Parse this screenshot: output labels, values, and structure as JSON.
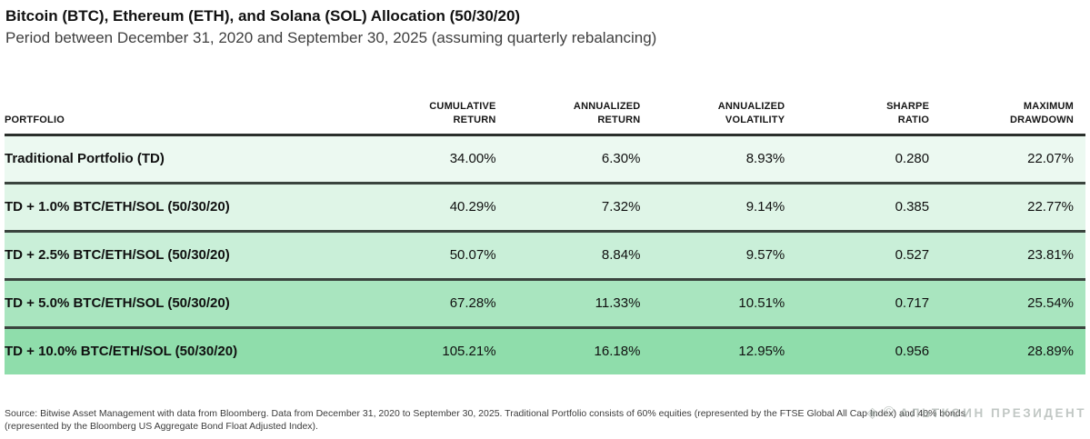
{
  "header": {
    "title": "Bitcoin (BTC), Ethereum (ETH), and Solana (SOL) Allocation (50/30/20)",
    "subtitle": "Period between December 31, 2020 and September 30, 2025 (assuming quarterly rebalancing)"
  },
  "chart_data": {
    "type": "table",
    "title": "Bitcoin (BTC), Ethereum (ETH), and Solana (SOL) Allocation (50/30/20)",
    "subtitle": "Period between December 31, 2020 and September 30, 2025 (assuming quarterly rebalancing)",
    "columns": [
      {
        "line1": "PORTFOLIO",
        "line2": ""
      },
      {
        "line1": "CUMULATIVE",
        "line2": "RETURN"
      },
      {
        "line1": "ANNUALIZED",
        "line2": "RETURN"
      },
      {
        "line1": "ANNUALIZED",
        "line2": "VOLATILITY"
      },
      {
        "line1": "SHARPE",
        "line2": "RATIO"
      },
      {
        "line1": "MAXIMUM",
        "line2": "DRAWDOWN"
      }
    ],
    "rows": [
      {
        "portfolio": "Traditional Portfolio (TD)",
        "cumulative_return": "34.00%",
        "annualized_return": "6.30%",
        "annualized_volatility": "8.93%",
        "sharpe_ratio": "0.280",
        "maximum_drawdown": "22.07%",
        "row_color": "#ecf9f1"
      },
      {
        "portfolio": "TD + 1.0% BTC/ETH/SOL (50/30/20)",
        "cumulative_return": "40.29%",
        "annualized_return": "7.32%",
        "annualized_volatility": "9.14%",
        "sharpe_ratio": "0.385",
        "maximum_drawdown": "22.77%",
        "row_color": "#dff5e7"
      },
      {
        "portfolio": "TD + 2.5% BTC/ETH/SOL (50/30/20)",
        "cumulative_return": "50.07%",
        "annualized_return": "8.84%",
        "annualized_volatility": "9.57%",
        "sharpe_ratio": "0.527",
        "maximum_drawdown": "23.81%",
        "row_color": "#c9efd8"
      },
      {
        "portfolio": "TD + 5.0% BTC/ETH/SOL (50/30/20)",
        "cumulative_return": "67.28%",
        "annualized_return": "11.33%",
        "annualized_volatility": "10.51%",
        "sharpe_ratio": "0.717",
        "maximum_drawdown": "25.54%",
        "row_color": "#a9e5bf"
      },
      {
        "portfolio": "TD + 10.0% BTC/ETH/SOL (50/30/20)",
        "cumulative_return": "105.21%",
        "annualized_return": "16.18%",
        "annualized_volatility": "12.95%",
        "sharpe_ratio": "0.956",
        "maximum_drawdown": "28.89%",
        "row_color": "#8fddab"
      }
    ],
    "layout": {
      "heat_gradient": "light-to-dark green top-to-bottom",
      "separator_color": "#3a443e",
      "header_rule_color": "#2b2f2c"
    }
  },
  "footer": {
    "line1": "Source: Bitwise Asset Management with data from Bloomberg. Data from December 31, 2020 to September 30, 2025. Traditional Portfolio consists of 60% equities (represented by the FTSE Global All Cap Index) and 40% bonds",
    "line2": "(represented by the Bloomberg US Aggregate Bond Float Adjusted Index)."
  },
  "watermark": {
    "diamond_icon": "◈",
    "circle_icon": "©",
    "text": "АЛЬТКОИН ПРЕЗИДЕНТ"
  }
}
